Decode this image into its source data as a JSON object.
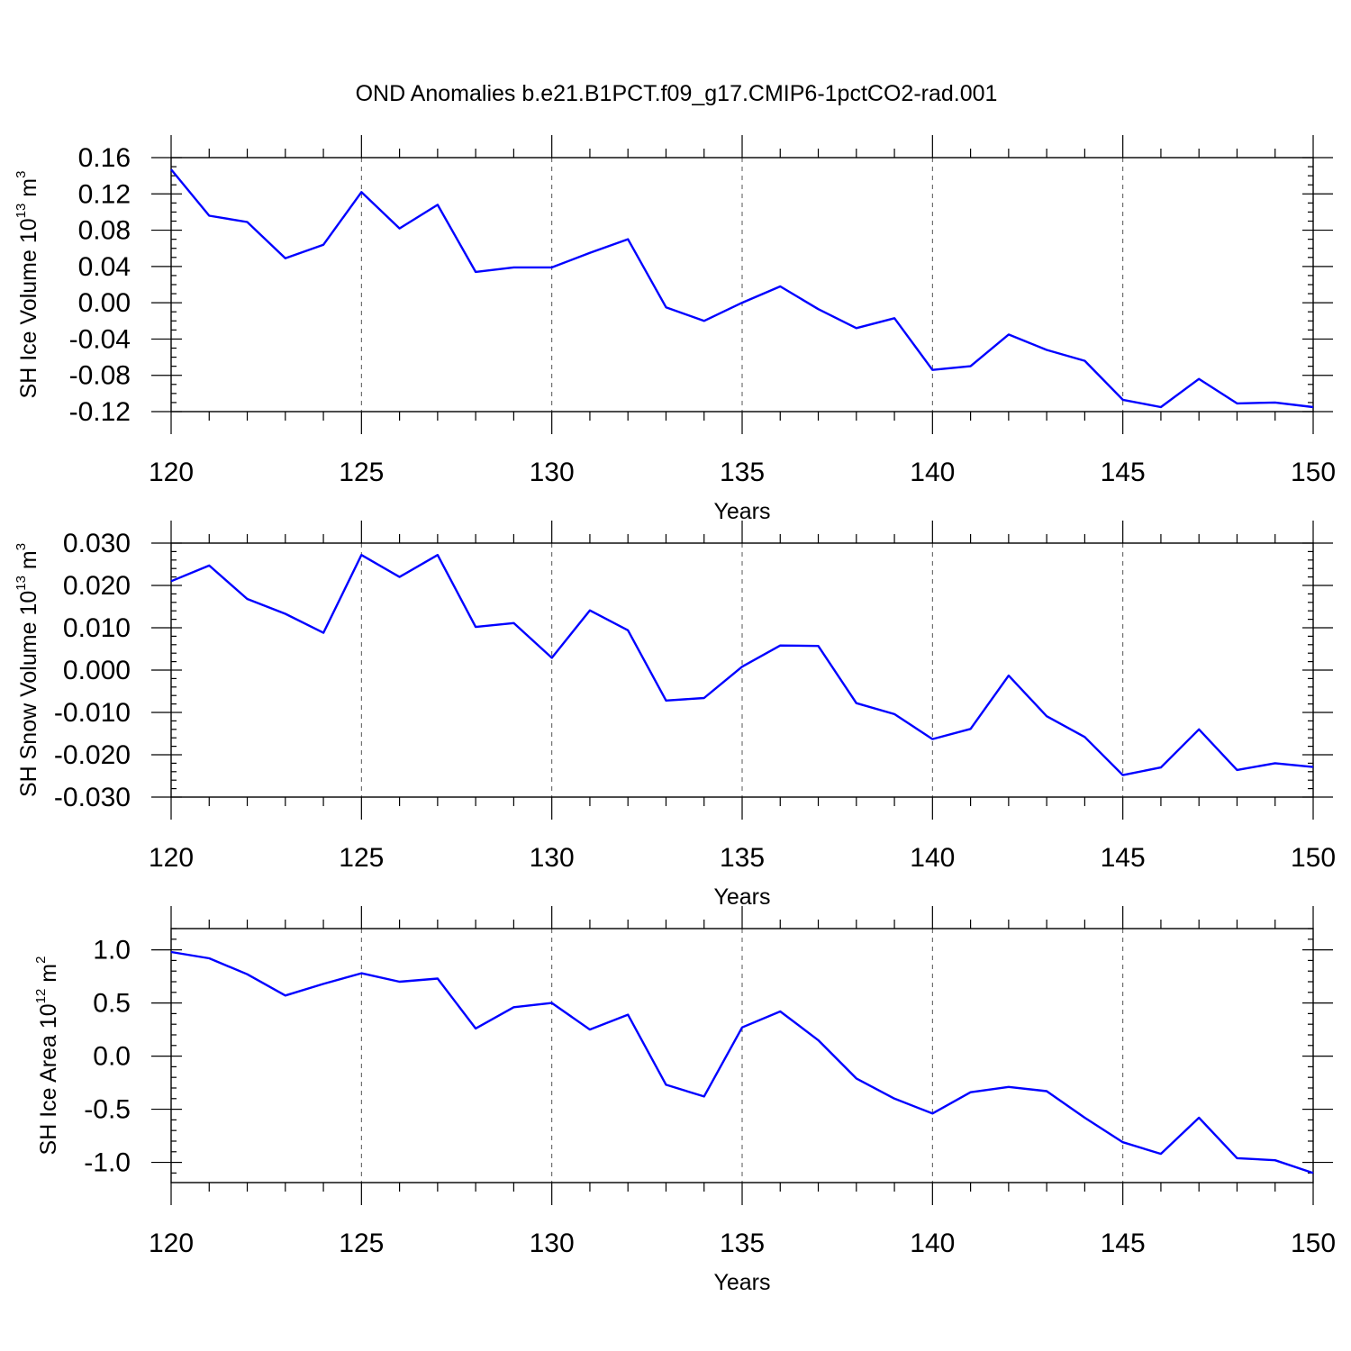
{
  "figure_title": "OND Anomalies b.e21.B1PCT.f09_g17.CMIP6-1pctCO2-rad.001",
  "colors": {
    "line": "#0000ff",
    "axes": "#000000",
    "grid": "#555555"
  },
  "chart_data": [
    {
      "type": "line",
      "xlabel": "Years",
      "ylabel_main": "SH Ice Volume 10",
      "ylabel_exp": "13",
      "ylabel_unit": " m",
      "ylabel_unit_exp": "3",
      "xlim": [
        120,
        150
      ],
      "ylim": [
        -0.12,
        0.16
      ],
      "frame_ylim": [
        -0.12,
        0.16
      ],
      "yticks": [
        -0.12,
        -0.08,
        -0.04,
        0.0,
        0.04,
        0.08,
        0.12,
        0.16
      ],
      "ytick_labels": [
        "-0.12",
        "-0.08",
        "-0.04",
        "0.00",
        "0.04",
        "0.08",
        "0.12",
        "0.16"
      ],
      "y_minor_step": 0.01,
      "xticks": [
        120,
        125,
        130,
        135,
        140,
        145,
        150
      ],
      "xtick_labels": [
        "120",
        "125",
        "130",
        "135",
        "140",
        "145",
        "150"
      ],
      "x_minor_step": 1,
      "grid": "vertical dashed at major x ticks",
      "x": [
        120,
        121,
        122,
        123,
        124,
        125,
        126,
        127,
        128,
        129,
        130,
        131,
        132,
        133,
        134,
        135,
        136,
        137,
        138,
        139,
        140,
        141,
        142,
        143,
        144,
        145,
        146,
        147,
        148,
        149,
        150
      ],
      "y": [
        0.147,
        0.096,
        0.089,
        0.049,
        0.064,
        0.122,
        0.082,
        0.108,
        0.034,
        0.039,
        0.039,
        0.055,
        0.07,
        -0.005,
        -0.02,
        0.0,
        0.018,
        -0.007,
        -0.028,
        -0.017,
        -0.074,
        -0.07,
        -0.035,
        -0.052,
        -0.064,
        -0.107,
        -0.115,
        -0.084,
        -0.111,
        -0.11,
        -0.115
      ]
    },
    {
      "type": "line",
      "xlabel": "Years",
      "ylabel_main": "SH Snow Volume 10",
      "ylabel_exp": "13",
      "ylabel_unit": " m",
      "ylabel_unit_exp": "3",
      "xlim": [
        120,
        150
      ],
      "ylim": [
        -0.03,
        0.03
      ],
      "frame_ylim": [
        -0.03,
        0.03
      ],
      "yticks": [
        -0.03,
        -0.02,
        -0.01,
        0.0,
        0.01,
        0.02,
        0.03
      ],
      "ytick_labels": [
        "-0.030",
        "-0.020",
        "-0.010",
        "0.000",
        "0.010",
        "0.020",
        "0.030"
      ],
      "y_minor_step": 0.002,
      "xticks": [
        120,
        125,
        130,
        135,
        140,
        145,
        150
      ],
      "xtick_labels": [
        "120",
        "125",
        "130",
        "135",
        "140",
        "145",
        "150"
      ],
      "x_minor_step": 1,
      "grid": "vertical dashed at major x ticks",
      "x": [
        120,
        121,
        122,
        123,
        124,
        125,
        126,
        127,
        128,
        129,
        130,
        131,
        132,
        133,
        134,
        135,
        136,
        137,
        138,
        139,
        140,
        141,
        142,
        143,
        144,
        145,
        146,
        147,
        148,
        149,
        150
      ],
      "y": [
        0.021,
        0.0247,
        0.0168,
        0.0133,
        0.0088,
        0.0272,
        0.022,
        0.0272,
        0.0102,
        0.0111,
        0.0029,
        0.0141,
        0.0094,
        -0.0072,
        -0.0066,
        0.0008,
        0.0058,
        0.0057,
        -0.0078,
        -0.0104,
        -0.0163,
        -0.0139,
        -0.0013,
        -0.0109,
        -0.0158,
        -0.0248,
        -0.023,
        -0.014,
        -0.0236,
        -0.022,
        -0.0229
      ]
    },
    {
      "type": "line",
      "xlabel": "Years",
      "ylabel_main": "SH Ice Area 10",
      "ylabel_exp": "12",
      "ylabel_unit": " m",
      "ylabel_unit_exp": "2",
      "xlim": [
        120,
        150
      ],
      "ylim": [
        -1.19,
        1.2
      ],
      "frame_ylim": [
        -1.19,
        1.2
      ],
      "yticks": [
        -1.0,
        -0.5,
        0.0,
        0.5,
        1.0
      ],
      "ytick_labels": [
        "-1.0",
        "-0.5",
        "0.0",
        "0.5",
        "1.0"
      ],
      "y_minor_step": 0.1,
      "xticks": [
        120,
        125,
        130,
        135,
        140,
        145,
        150
      ],
      "xtick_labels": [
        "120",
        "125",
        "130",
        "135",
        "140",
        "145",
        "150"
      ],
      "x_minor_step": 1,
      "grid": "vertical dashed at major x ticks",
      "x": [
        120,
        121,
        122,
        123,
        124,
        125,
        126,
        127,
        128,
        129,
        130,
        131,
        132,
        133,
        134,
        135,
        136,
        137,
        138,
        139,
        140,
        141,
        142,
        143,
        144,
        145,
        146,
        147,
        148,
        149,
        150
      ],
      "y": [
        0.98,
        0.92,
        0.77,
        0.57,
        0.68,
        0.78,
        0.7,
        0.73,
        0.26,
        0.46,
        0.5,
        0.25,
        0.39,
        -0.27,
        -0.38,
        0.27,
        0.42,
        0.15,
        -0.21,
        -0.4,
        -0.54,
        -0.34,
        -0.29,
        -0.33,
        -0.58,
        -0.81,
        -0.92,
        -0.58,
        -0.96,
        -0.98,
        -1.1
      ]
    }
  ]
}
